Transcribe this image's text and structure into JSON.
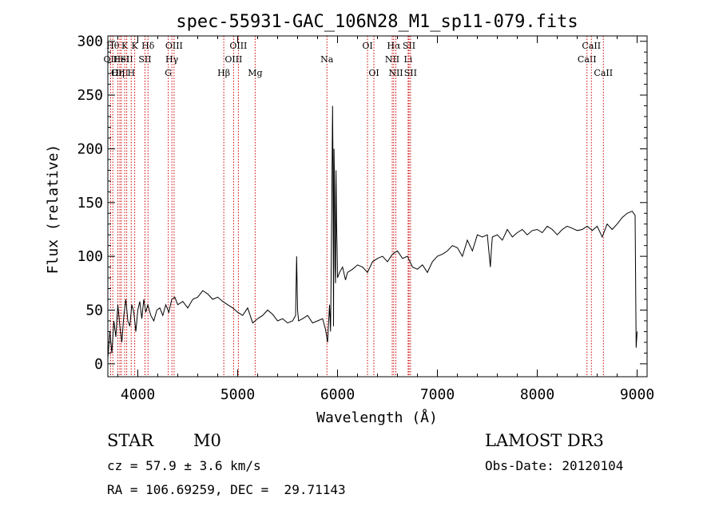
{
  "chart_data": {
    "type": "line",
    "title": "spec-55931-GAC_106N28_M1_sp11-079.fits",
    "xlabel": "Wavelength (Å)",
    "ylabel": "Flux (relative)",
    "xlim": [
      3700,
      9100
    ],
    "ylim": [
      -12,
      305
    ],
    "xticks": [
      4000,
      5000,
      6000,
      7000,
      8000,
      9000
    ],
    "yticks": [
      0,
      50,
      100,
      150,
      200,
      250,
      300
    ],
    "grid": false,
    "line_color": "#000000",
    "marker_color": "#cc0000",
    "series": [
      {
        "values_x": [
          3700,
          3720,
          3740,
          3760,
          3780,
          3800,
          3820,
          3840,
          3860,
          3880,
          3900,
          3920,
          3940,
          3960,
          3980,
          4000,
          4020,
          4040,
          4060,
          4080,
          4100,
          4130,
          4160,
          4190,
          4220,
          4250,
          4280,
          4310,
          4340,
          4370,
          4400,
          4450,
          4500,
          4550,
          4600,
          4650,
          4700,
          4750,
          4800,
          4850,
          4900,
          4950,
          5000,
          5050,
          5100,
          5150,
          5200,
          5250,
          5300,
          5350,
          5400,
          5450,
          5500,
          5550,
          5580,
          5590,
          5600,
          5610,
          5650,
          5700,
          5750,
          5800,
          5850,
          5880,
          5900,
          5910,
          5920,
          5930,
          5940,
          5950,
          5955,
          5960,
          5965,
          5970,
          5975,
          5980,
          5985,
          5990,
          5995,
          6000,
          6020,
          6050,
          6080,
          6100,
          6150,
          6200,
          6250,
          6300,
          6350,
          6400,
          6450,
          6500,
          6550,
          6600,
          6650,
          6700,
          6750,
          6800,
          6850,
          6900,
          6950,
          7000,
          7050,
          7100,
          7150,
          7200,
          7250,
          7300,
          7350,
          7400,
          7450,
          7500,
          7530,
          7540,
          7550,
          7600,
          7650,
          7700,
          7750,
          7800,
          7850,
          7900,
          7950,
          8000,
          8050,
          8100,
          8150,
          8200,
          8250,
          8300,
          8350,
          8400,
          8450,
          8500,
          8550,
          8600,
          8650,
          8700,
          8750,
          8800,
          8850,
          8900,
          8950,
          8980,
          8990,
          9000
        ],
        "values_y": [
          5,
          30,
          10,
          40,
          25,
          55,
          35,
          20,
          45,
          60,
          40,
          35,
          55,
          48,
          30,
          50,
          58,
          42,
          60,
          48,
          55,
          45,
          40,
          50,
          52,
          45,
          55,
          48,
          60,
          62,
          55,
          58,
          52,
          60,
          62,
          68,
          65,
          60,
          62,
          58,
          55,
          52,
          48,
          45,
          52,
          38,
          42,
          45,
          50,
          46,
          40,
          42,
          38,
          40,
          45,
          100,
          50,
          40,
          42,
          45,
          38,
          40,
          42,
          32,
          20,
          38,
          55,
          30,
          120,
          240,
          180,
          35,
          200,
          160,
          90,
          75,
          180,
          130,
          110,
          80,
          85,
          90,
          78,
          85,
          88,
          92,
          90,
          85,
          95,
          98,
          100,
          95,
          102,
          105,
          98,
          100,
          90,
          88,
          92,
          85,
          95,
          100,
          102,
          105,
          110,
          108,
          100,
          115,
          105,
          120,
          118,
          120,
          90,
          105,
          118,
          120,
          115,
          125,
          118,
          122,
          125,
          120,
          124,
          125,
          122,
          128,
          125,
          120,
          125,
          128,
          126,
          124,
          125,
          128,
          124,
          128,
          118,
          130,
          125,
          130,
          136,
          140,
          142,
          138,
          15,
          30
        ]
      }
    ],
    "line_markers": [
      {
        "wavelength": 3727,
        "label": "OII",
        "row": 2
      },
      {
        "wavelength": 3750,
        "label": "Hθ",
        "row": 1
      },
      {
        "wavelength": 3800,
        "label": "Hη",
        "row": 3
      },
      {
        "wavelength": 3820,
        "label": "OIII",
        "row": 3
      },
      {
        "wavelength": 3835,
        "label": "HeI",
        "row": 2
      },
      {
        "wavelength": 3869,
        "label": "K",
        "row": 1
      },
      {
        "wavelength": 3889,
        "label": "SII",
        "row": 2
      },
      {
        "wavelength": 3934,
        "label": "H",
        "row": 3
      },
      {
        "wavelength": 3969,
        "label": "K",
        "row": 1
      },
      {
        "wavelength": 4072,
        "label": "SII",
        "row": 2
      },
      {
        "wavelength": 4102,
        "label": "Hδ",
        "row": 1
      },
      {
        "wavelength": 4305,
        "label": "G",
        "row": 3
      },
      {
        "wavelength": 4341,
        "label": "Hγ",
        "row": 2
      },
      {
        "wavelength": 4363,
        "label": "OIII",
        "row": 1
      },
      {
        "wavelength": 4861,
        "label": "Hβ",
        "row": 3
      },
      {
        "wavelength": 4959,
        "label": "OIII",
        "row": 2
      },
      {
        "wavelength": 5007,
        "label": "OIII",
        "row": 1
      },
      {
        "wavelength": 5175,
        "label": "Mg",
        "row": 3
      },
      {
        "wavelength": 5894,
        "label": "Na",
        "row": 2
      },
      {
        "wavelength": 6300,
        "label": "OI",
        "row": 1
      },
      {
        "wavelength": 6364,
        "label": "OI",
        "row": 3
      },
      {
        "wavelength": 6548,
        "label": "NII",
        "row": 2
      },
      {
        "wavelength": 6563,
        "label": "Hα",
        "row": 1
      },
      {
        "wavelength": 6584,
        "label": "NII",
        "row": 3
      },
      {
        "wavelength": 6707,
        "label": "Li",
        "row": 2
      },
      {
        "wavelength": 6716,
        "label": "SII",
        "row": 1
      },
      {
        "wavelength": 6731,
        "label": "SII",
        "row": 3
      },
      {
        "wavelength": 8498,
        "label": "CaII",
        "row": 2
      },
      {
        "wavelength": 8542,
        "label": "CaII",
        "row": 1
      },
      {
        "wavelength": 8662,
        "label": "CaII",
        "row": 3
      }
    ]
  },
  "info": {
    "object_type": "STAR",
    "subclass": "M0",
    "survey": "LAMOST DR3",
    "redshift_text": "cz = 57.9 ± 3.6 km/s",
    "obs_date_text": "Obs-Date: 20120104",
    "coords_text": "RA = 106.69259, DEC =  29.71143"
  }
}
